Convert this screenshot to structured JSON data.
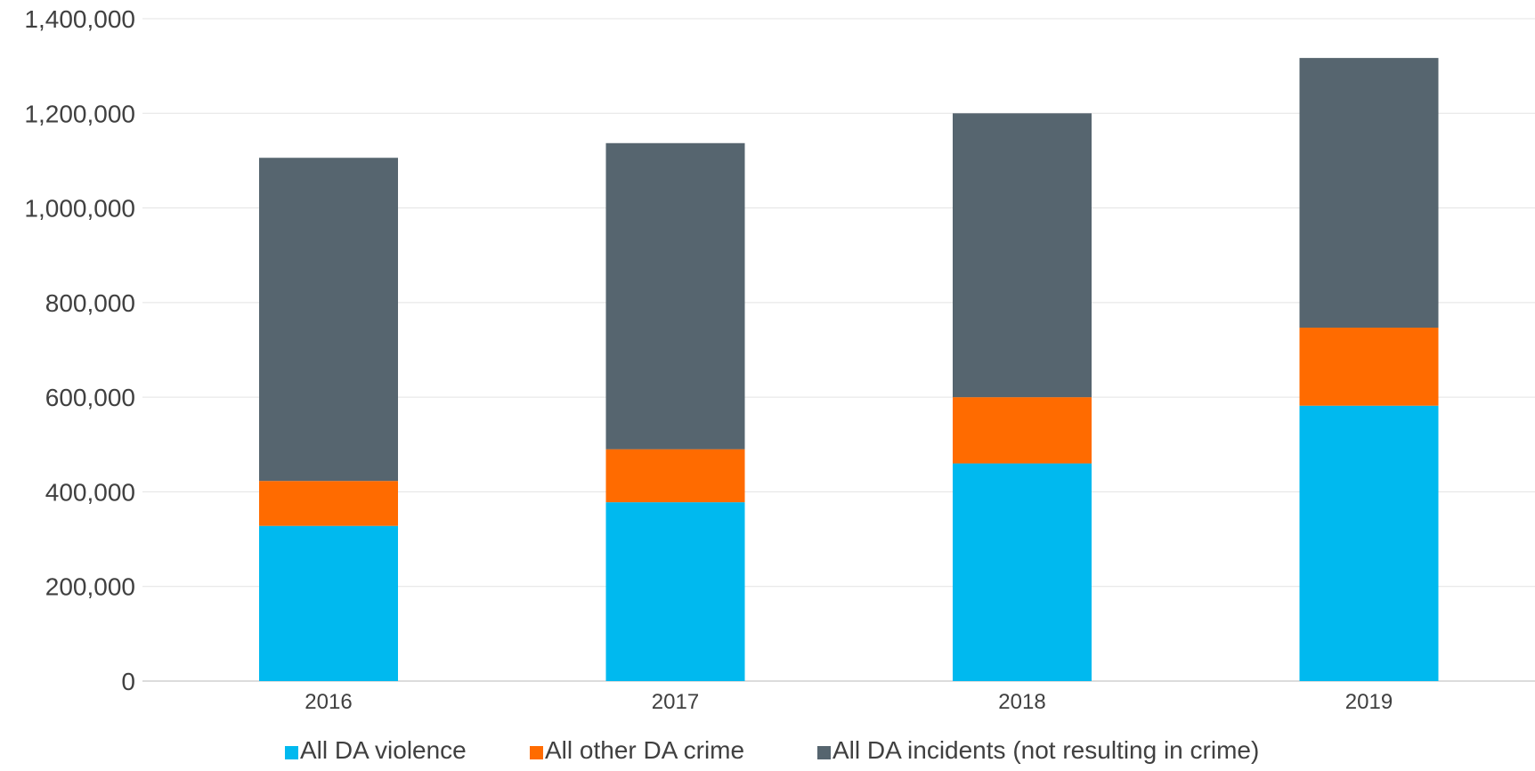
{
  "chart_data": {
    "type": "bar",
    "stacked": true,
    "categories": [
      "2016",
      "2017",
      "2018",
      "2019"
    ],
    "series": [
      {
        "name": "All DA violence",
        "color": "#00b9ef",
        "values": [
          328000,
          378000,
          460000,
          582000
        ]
      },
      {
        "name": "All other DA crime",
        "color": "#ff6b00",
        "values": [
          95000,
          112000,
          140000,
          165000
        ]
      },
      {
        "name": "All DA incidents (not resulting in crime)",
        "color": "#56656f",
        "values": [
          683000,
          647000,
          600000,
          570000
        ]
      }
    ],
    "ylim": [
      0,
      1400000
    ],
    "yticks": [
      {
        "value": 0,
        "label": "0"
      },
      {
        "value": 200000,
        "label": "200,000"
      },
      {
        "value": 400000,
        "label": "400,000"
      },
      {
        "value": 600000,
        "label": "600,000"
      },
      {
        "value": 800000,
        "label": "800,000"
      },
      {
        "value": 1000000,
        "label": "1,000,000"
      },
      {
        "value": 1200000,
        "label": "1,200,000"
      },
      {
        "value": 1400000,
        "label": "1,400,000"
      }
    ],
    "grid": true,
    "legend": "bottom"
  }
}
